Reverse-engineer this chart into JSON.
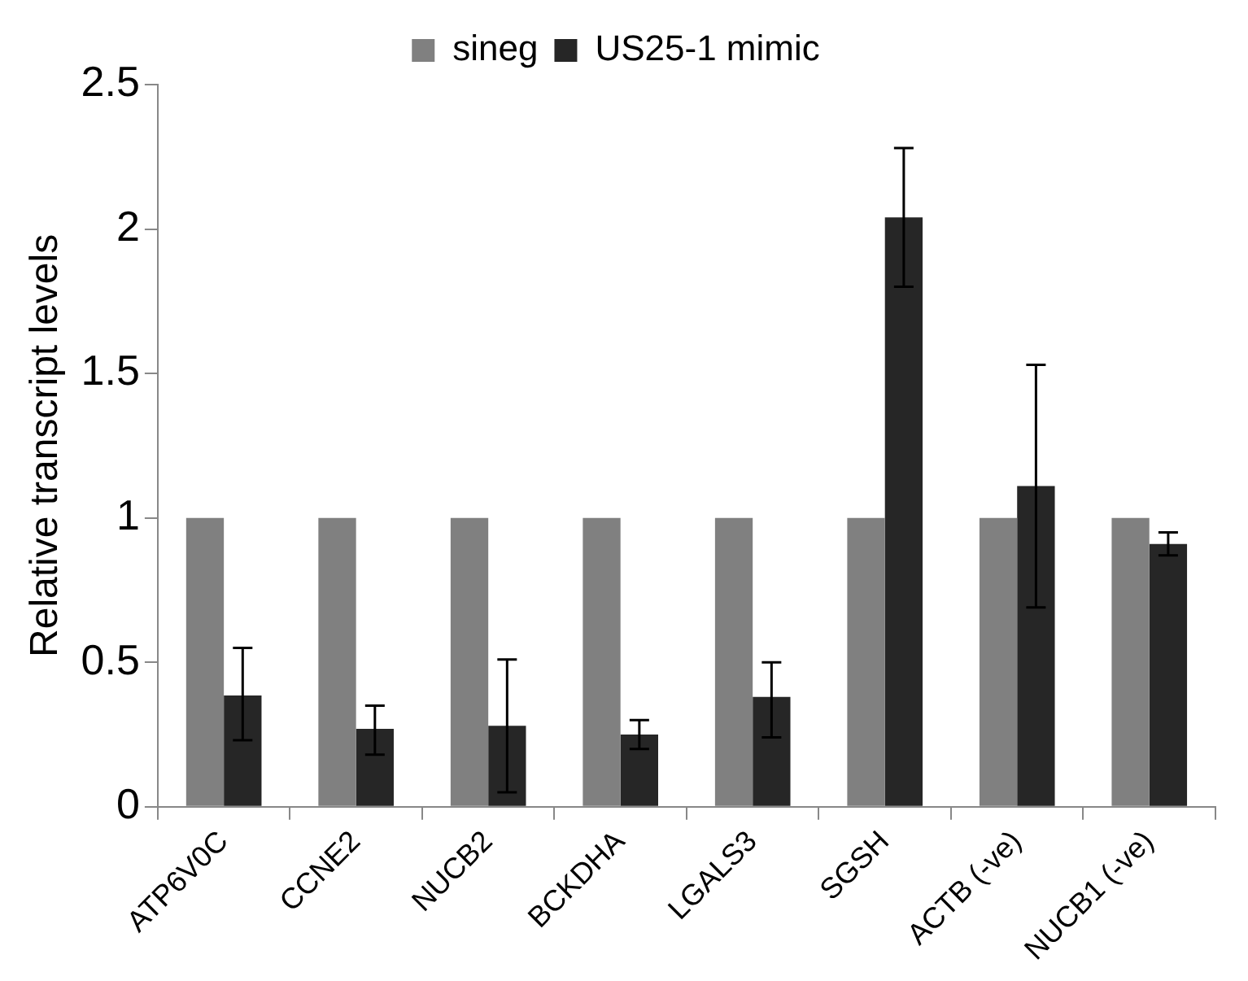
{
  "chart_data": {
    "type": "bar",
    "ylabel": "Relative transcript levels",
    "categories": [
      "ATP6V0C",
      "CCNE2",
      "NUCB2",
      "BCKDHA",
      "LGALS3",
      "SGSH",
      "ACTB (-ve)",
      "NUCB1 (-ve)"
    ],
    "series": [
      {
        "name": "sineg",
        "color": "#808080",
        "values": [
          1,
          1,
          1,
          1,
          1,
          1,
          1,
          1
        ]
      },
      {
        "name": "US25-1 mimic",
        "color": "#262626",
        "values": [
          0.385,
          0.27,
          0.28,
          0.25,
          0.38,
          2.04,
          1.11,
          0.91
        ],
        "errors": [
          [
            0.23,
            0.55
          ],
          [
            0.18,
            0.35
          ],
          [
            0.05,
            0.51
          ],
          [
            0.2,
            0.3
          ],
          [
            0.24,
            0.5
          ],
          [
            1.8,
            2.28
          ],
          [
            0.69,
            1.53
          ],
          [
            0.87,
            0.95
          ]
        ]
      }
    ],
    "ylim": [
      0,
      2.5
    ],
    "yticks": [
      0,
      0.5,
      1,
      1.5,
      2,
      2.5
    ],
    "grid": false,
    "legend": "top"
  }
}
